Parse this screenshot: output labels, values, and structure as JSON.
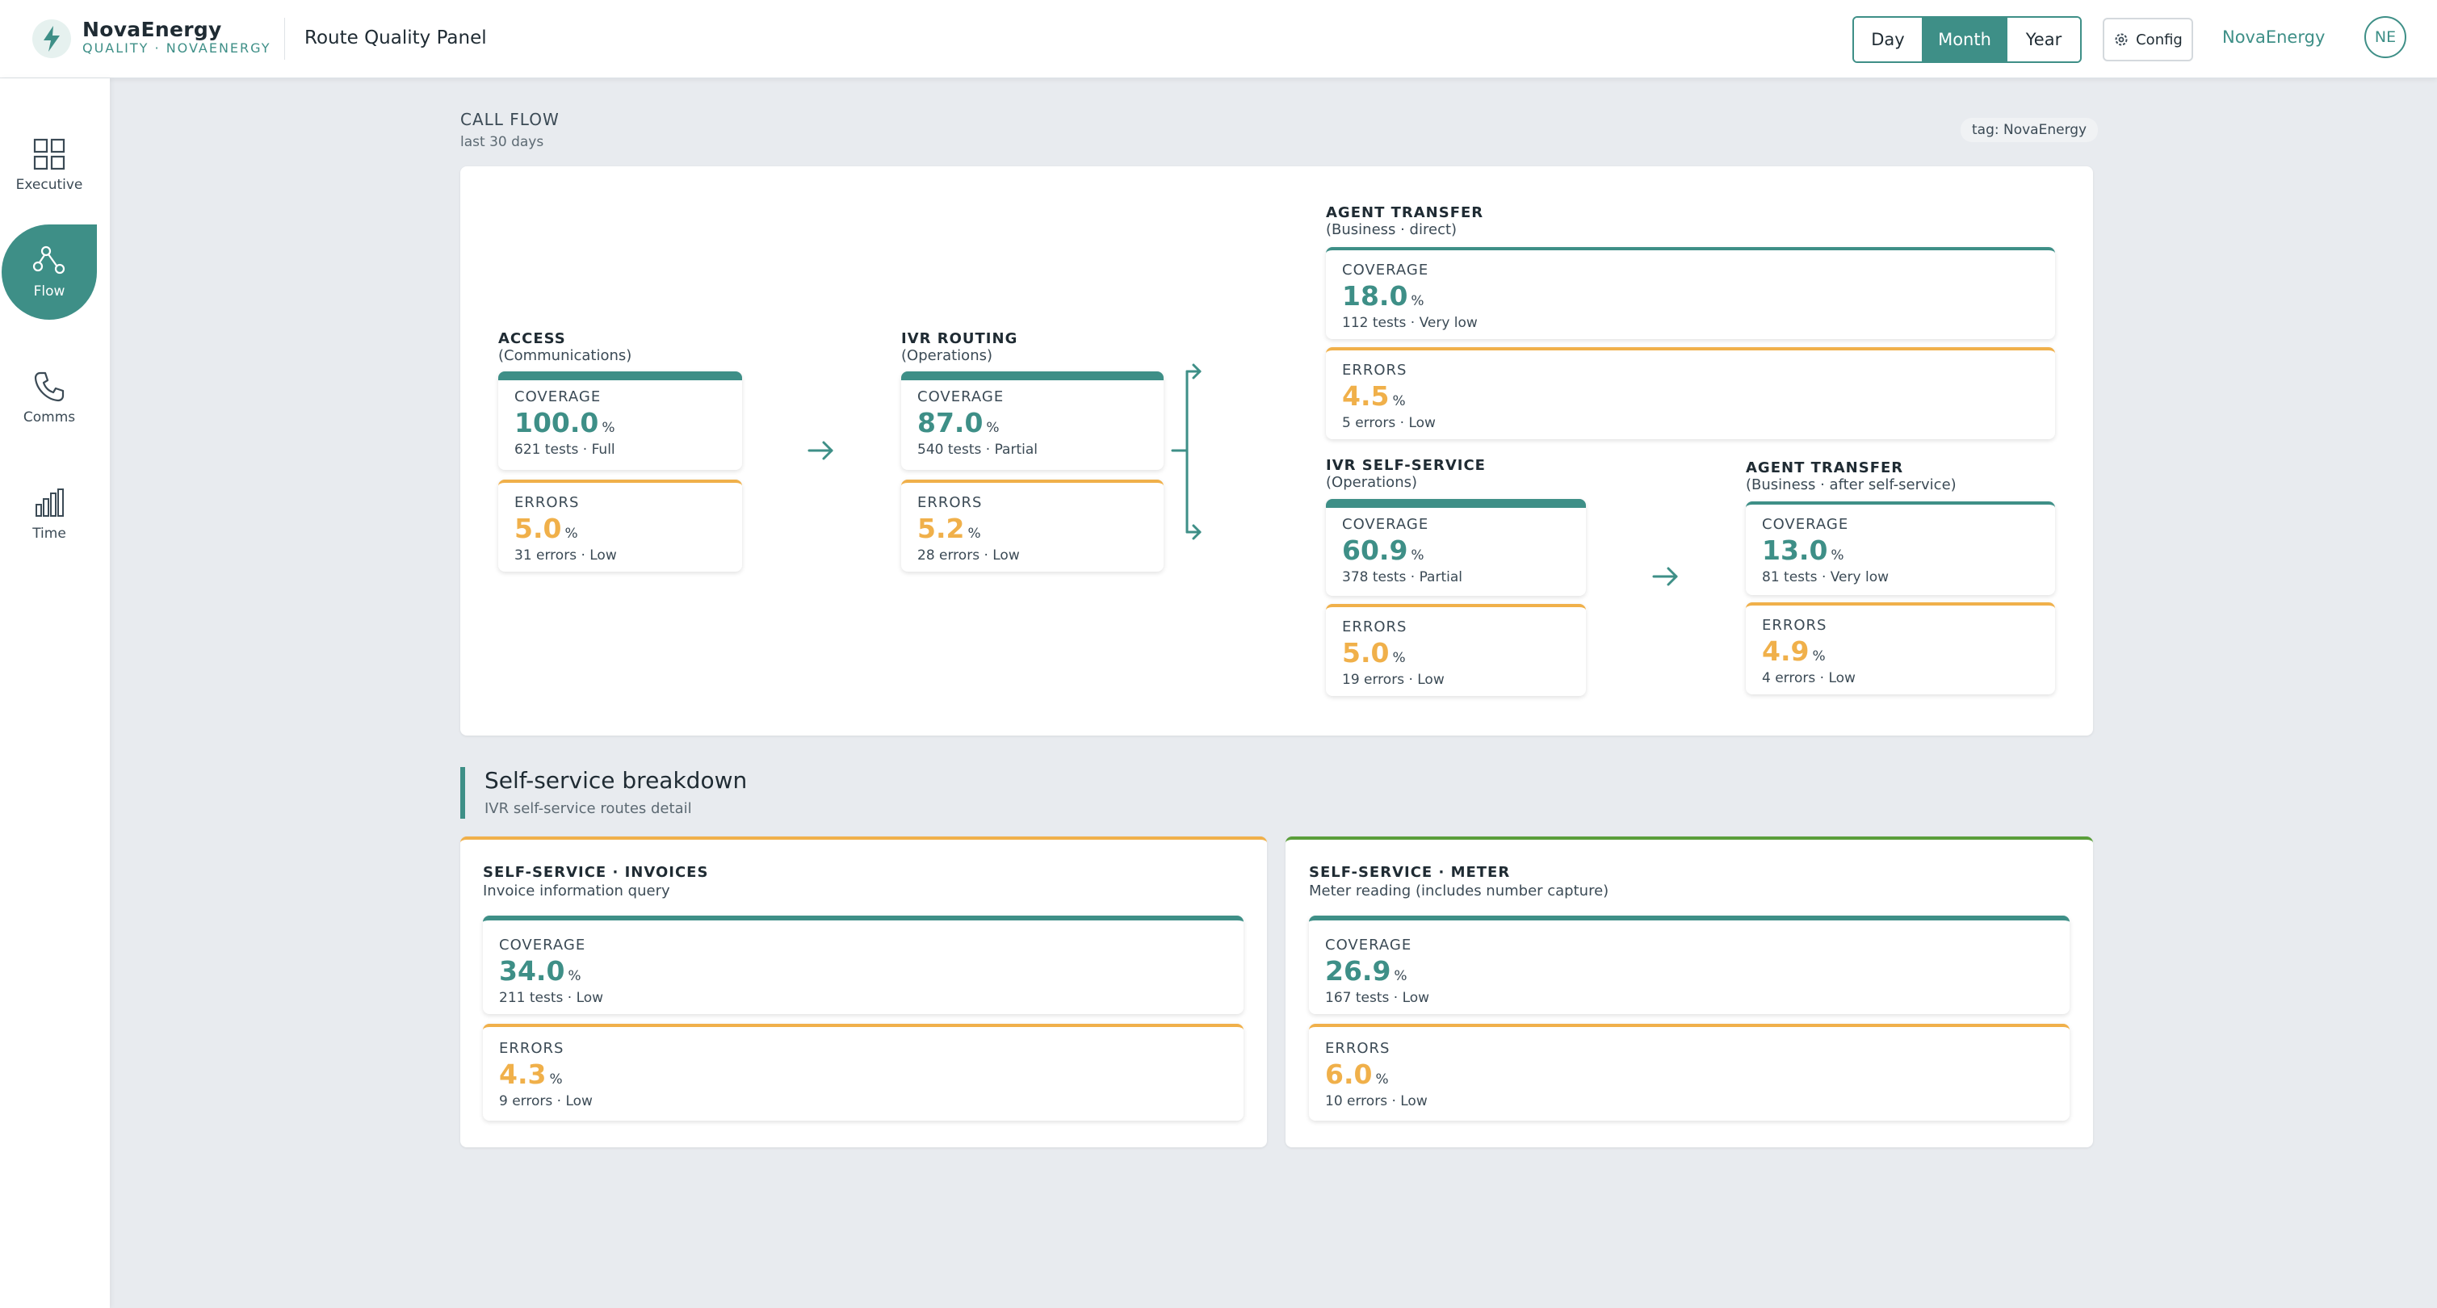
{
  "header": {
    "brand_name": "NovaEnergy",
    "brand_sub": "QUALITY · NOVAENERGY",
    "page_title": "Route Quality Panel",
    "periods": [
      "Day",
      "Month",
      "Year"
    ],
    "active_period": "Month",
    "config_label": "Config",
    "user_name": "NovaEnergy",
    "user_initials": "NE"
  },
  "sidebar": {
    "items": [
      {
        "label": "Executive",
        "icon": "grid-icon"
      },
      {
        "label": "Flow",
        "icon": "flow-icon",
        "active": true
      },
      {
        "label": "Comms",
        "icon": "phone-icon"
      },
      {
        "label": "Time",
        "icon": "bar-chart-icon"
      }
    ]
  },
  "callflow": {
    "section_label": "CALL FLOW",
    "period_note": "last 30 days",
    "tag": "tag: NovaEnergy",
    "nodes": {
      "access": {
        "title": "ACCESS",
        "subtitle": "(Communications)",
        "coverage": {
          "label": "COVERAGE",
          "value": "100.0",
          "unit": "%",
          "detail": "621 tests · Full"
        },
        "errors": {
          "label": "ERRORS",
          "value": "5.0",
          "unit": "%",
          "detail": "31 errors · Low"
        }
      },
      "ivr_routing": {
        "title": "IVR ROUTING",
        "subtitle": "(Operations)",
        "coverage": {
          "label": "COVERAGE",
          "value": "87.0",
          "unit": "%",
          "detail": "540 tests · Partial"
        },
        "errors": {
          "label": "ERRORS",
          "value": "5.2",
          "unit": "%",
          "detail": "28 errors · Low"
        }
      },
      "agent_transfer_direct": {
        "title": "AGENT TRANSFER",
        "subtitle": "(Business · direct)",
        "coverage": {
          "label": "COVERAGE",
          "value": "18.0",
          "unit": "%",
          "detail": "112 tests · Very low"
        },
        "errors": {
          "label": "ERRORS",
          "value": "4.5",
          "unit": "%",
          "detail": "5 errors · Low"
        }
      },
      "ivr_self_service": {
        "title": "IVR SELF-SERVICE",
        "subtitle": "(Operations)",
        "coverage": {
          "label": "COVERAGE",
          "value": "60.9",
          "unit": "%",
          "detail": "378 tests · Partial"
        },
        "errors": {
          "label": "ERRORS",
          "value": "5.0",
          "unit": "%",
          "detail": "19 errors · Low"
        }
      },
      "agent_transfer_after": {
        "title": "AGENT TRANSFER",
        "subtitle": "(Business · after self-service)",
        "coverage": {
          "label": "COVERAGE",
          "value": "13.0",
          "unit": "%",
          "detail": "81 tests · Very low"
        },
        "errors": {
          "label": "ERRORS",
          "value": "4.9",
          "unit": "%",
          "detail": "4 errors · Low"
        }
      }
    }
  },
  "breakdown": {
    "title": "Self-service breakdown",
    "subtitle": "IVR self-service routes detail",
    "invoices": {
      "title": "SELF-SERVICE · INVOICES",
      "subtitle": "Invoice information query",
      "accent": "#f0b04a",
      "coverage": {
        "label": "COVERAGE",
        "value": "34.0",
        "unit": "%",
        "detail": "211 tests · Low"
      },
      "errors": {
        "label": "ERRORS",
        "value": "4.3",
        "unit": "%",
        "detail": "9 errors · Low"
      }
    },
    "meter": {
      "title": "SELF-SERVICE · METER",
      "subtitle": "Meter reading (includes number capture)",
      "accent": "#5a9e3a",
      "coverage": {
        "label": "COVERAGE",
        "value": "26.9",
        "unit": "%",
        "detail": "167 tests · Low"
      },
      "errors": {
        "label": "ERRORS",
        "value": "6.0",
        "unit": "%",
        "detail": "10 errors · Low"
      }
    }
  },
  "colors": {
    "primary": "#3e8f87",
    "warning": "#f0b04a",
    "success": "#5a9e3a"
  }
}
